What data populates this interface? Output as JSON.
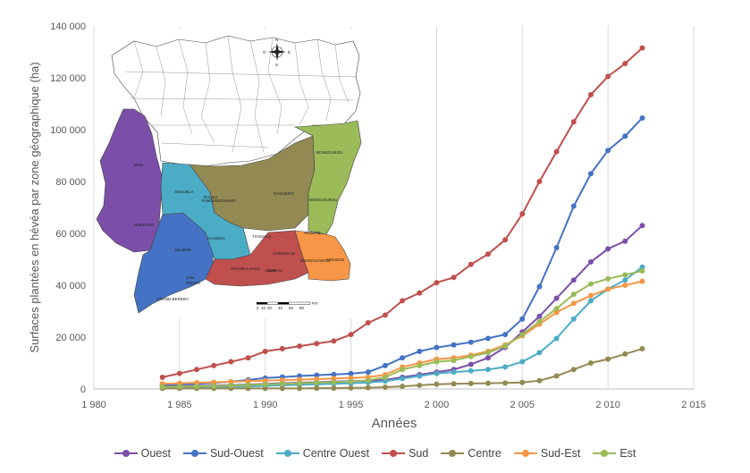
{
  "chart_data": {
    "type": "line",
    "xlabel": "Années",
    "ylabel": "Surfaces plantées en hévéa par zone géographique (ha)",
    "xlim": [
      1980,
      2015
    ],
    "ylim": [
      0,
      140000
    ],
    "x_ticks": [
      "1 980",
      "1 985",
      "1 990",
      "1 995",
      "2 000",
      "2 005",
      "2 010",
      "2 015"
    ],
    "y_ticks": [
      "0",
      "20 000",
      "40 000",
      "60 000",
      "80 000",
      "100 000",
      "120 000",
      "140 000"
    ],
    "grid": "vertical",
    "legend_position": "bottom",
    "x": [
      1984,
      1985,
      1986,
      1987,
      1988,
      1989,
      1990,
      1991,
      1992,
      1993,
      1994,
      1995,
      1996,
      1997,
      1998,
      1999,
      2000,
      2001,
      2002,
      2003,
      2004,
      2005,
      2006,
      2007,
      2008,
      2009,
      2010,
      2011,
      2012
    ],
    "series": [
      {
        "name": "Ouest",
        "color": "#7b4fa8",
        "values": [
          1000,
          1100,
          1200,
          1300,
          1500,
          1700,
          2000,
          2200,
          2400,
          2600,
          2800,
          3000,
          3200,
          3500,
          4500,
          5500,
          6500,
          7500,
          9500,
          12000,
          16000,
          22000,
          28000,
          35000,
          42000,
          49000,
          54000,
          57000,
          63000
        ]
      },
      {
        "name": "Sud-Ouest",
        "color": "#4472c4",
        "values": [
          1500,
          1800,
          2000,
          2300,
          2800,
          3500,
          4200,
          4600,
          5000,
          5300,
          5600,
          5900,
          6500,
          9000,
          12000,
          14500,
          16000,
          17000,
          18000,
          19500,
          21000,
          27000,
          39500,
          54500,
          70500,
          83000,
          92000,
          97500,
          104500
        ]
      },
      {
        "name": "Centre Ouest",
        "color": "#4bacc6",
        "values": [
          500,
          600,
          700,
          800,
          900,
          1000,
          1200,
          1400,
          1600,
          1800,
          2000,
          2200,
          2500,
          3000,
          4000,
          5000,
          6000,
          6500,
          7000,
          7500,
          8500,
          10500,
          14000,
          19500,
          27000,
          34000,
          38500,
          42000,
          47000
        ]
      },
      {
        "name": "Sud",
        "color": "#c0504d",
        "values": [
          4500,
          6000,
          7500,
          9000,
          10500,
          12000,
          14500,
          15500,
          16500,
          17500,
          18500,
          21000,
          25500,
          28500,
          34000,
          37000,
          41000,
          43000,
          48000,
          52000,
          57500,
          67500,
          80000,
          91500,
          103000,
          113500,
          120500,
          125500,
          131500
        ]
      },
      {
        "name": "Centre",
        "color": "#938953",
        "values": [
          200,
          200,
          200,
          200,
          200,
          200,
          200,
          200,
          200,
          300,
          300,
          400,
          500,
          700,
          1000,
          1400,
          1800,
          2000,
          2100,
          2200,
          2300,
          2500,
          3200,
          5000,
          7500,
          10000,
          11500,
          13500,
          15500
        ]
      },
      {
        "name": "Sud-Est",
        "color": "#f79646",
        "values": [
          2000,
          2200,
          2400,
          2600,
          2800,
          3000,
          3200,
          3400,
          3600,
          3800,
          4000,
          4200,
          4500,
          5500,
          8500,
          10000,
          11500,
          12000,
          13000,
          14500,
          17000,
          20500,
          25000,
          29500,
          33000,
          36000,
          38500,
          40000,
          41500
        ]
      },
      {
        "name": "Est",
        "color": "#9bbb59",
        "values": [
          800,
          900,
          1000,
          1100,
          1300,
          1500,
          1800,
          2000,
          2200,
          2400,
          2600,
          2900,
          3300,
          4500,
          7500,
          9000,
          10500,
          11000,
          12500,
          14000,
          16500,
          21000,
          26000,
          31000,
          36500,
          40500,
          42500,
          44000,
          45500
        ]
      }
    ]
  },
  "map": {
    "compass": {
      "n": "N",
      "s": "S",
      "e": "E",
      "w": "O"
    },
    "scale_ticks": [
      "0",
      "10",
      "20",
      "40",
      "60",
      "80"
    ],
    "scale_unit": "Km",
    "labels": [
      "MAN",
      "DUEKOUE",
      "SEGUELA",
      "DALOA",
      "SOUBRE",
      "SAN PEDRO",
      "GAGNOA",
      "YAMOUSSOUKRO",
      "DAOUKRO",
      "DIVO",
      "BONGOUANOU",
      "ABENGOUROU",
      "BONDOUKOU",
      "ADZOPE",
      "TIASSALE",
      "AGBOVILLE",
      "GRAND-LAHOU",
      "DABOU",
      "ABOISSO",
      "GRAND-BEREBY"
    ]
  }
}
